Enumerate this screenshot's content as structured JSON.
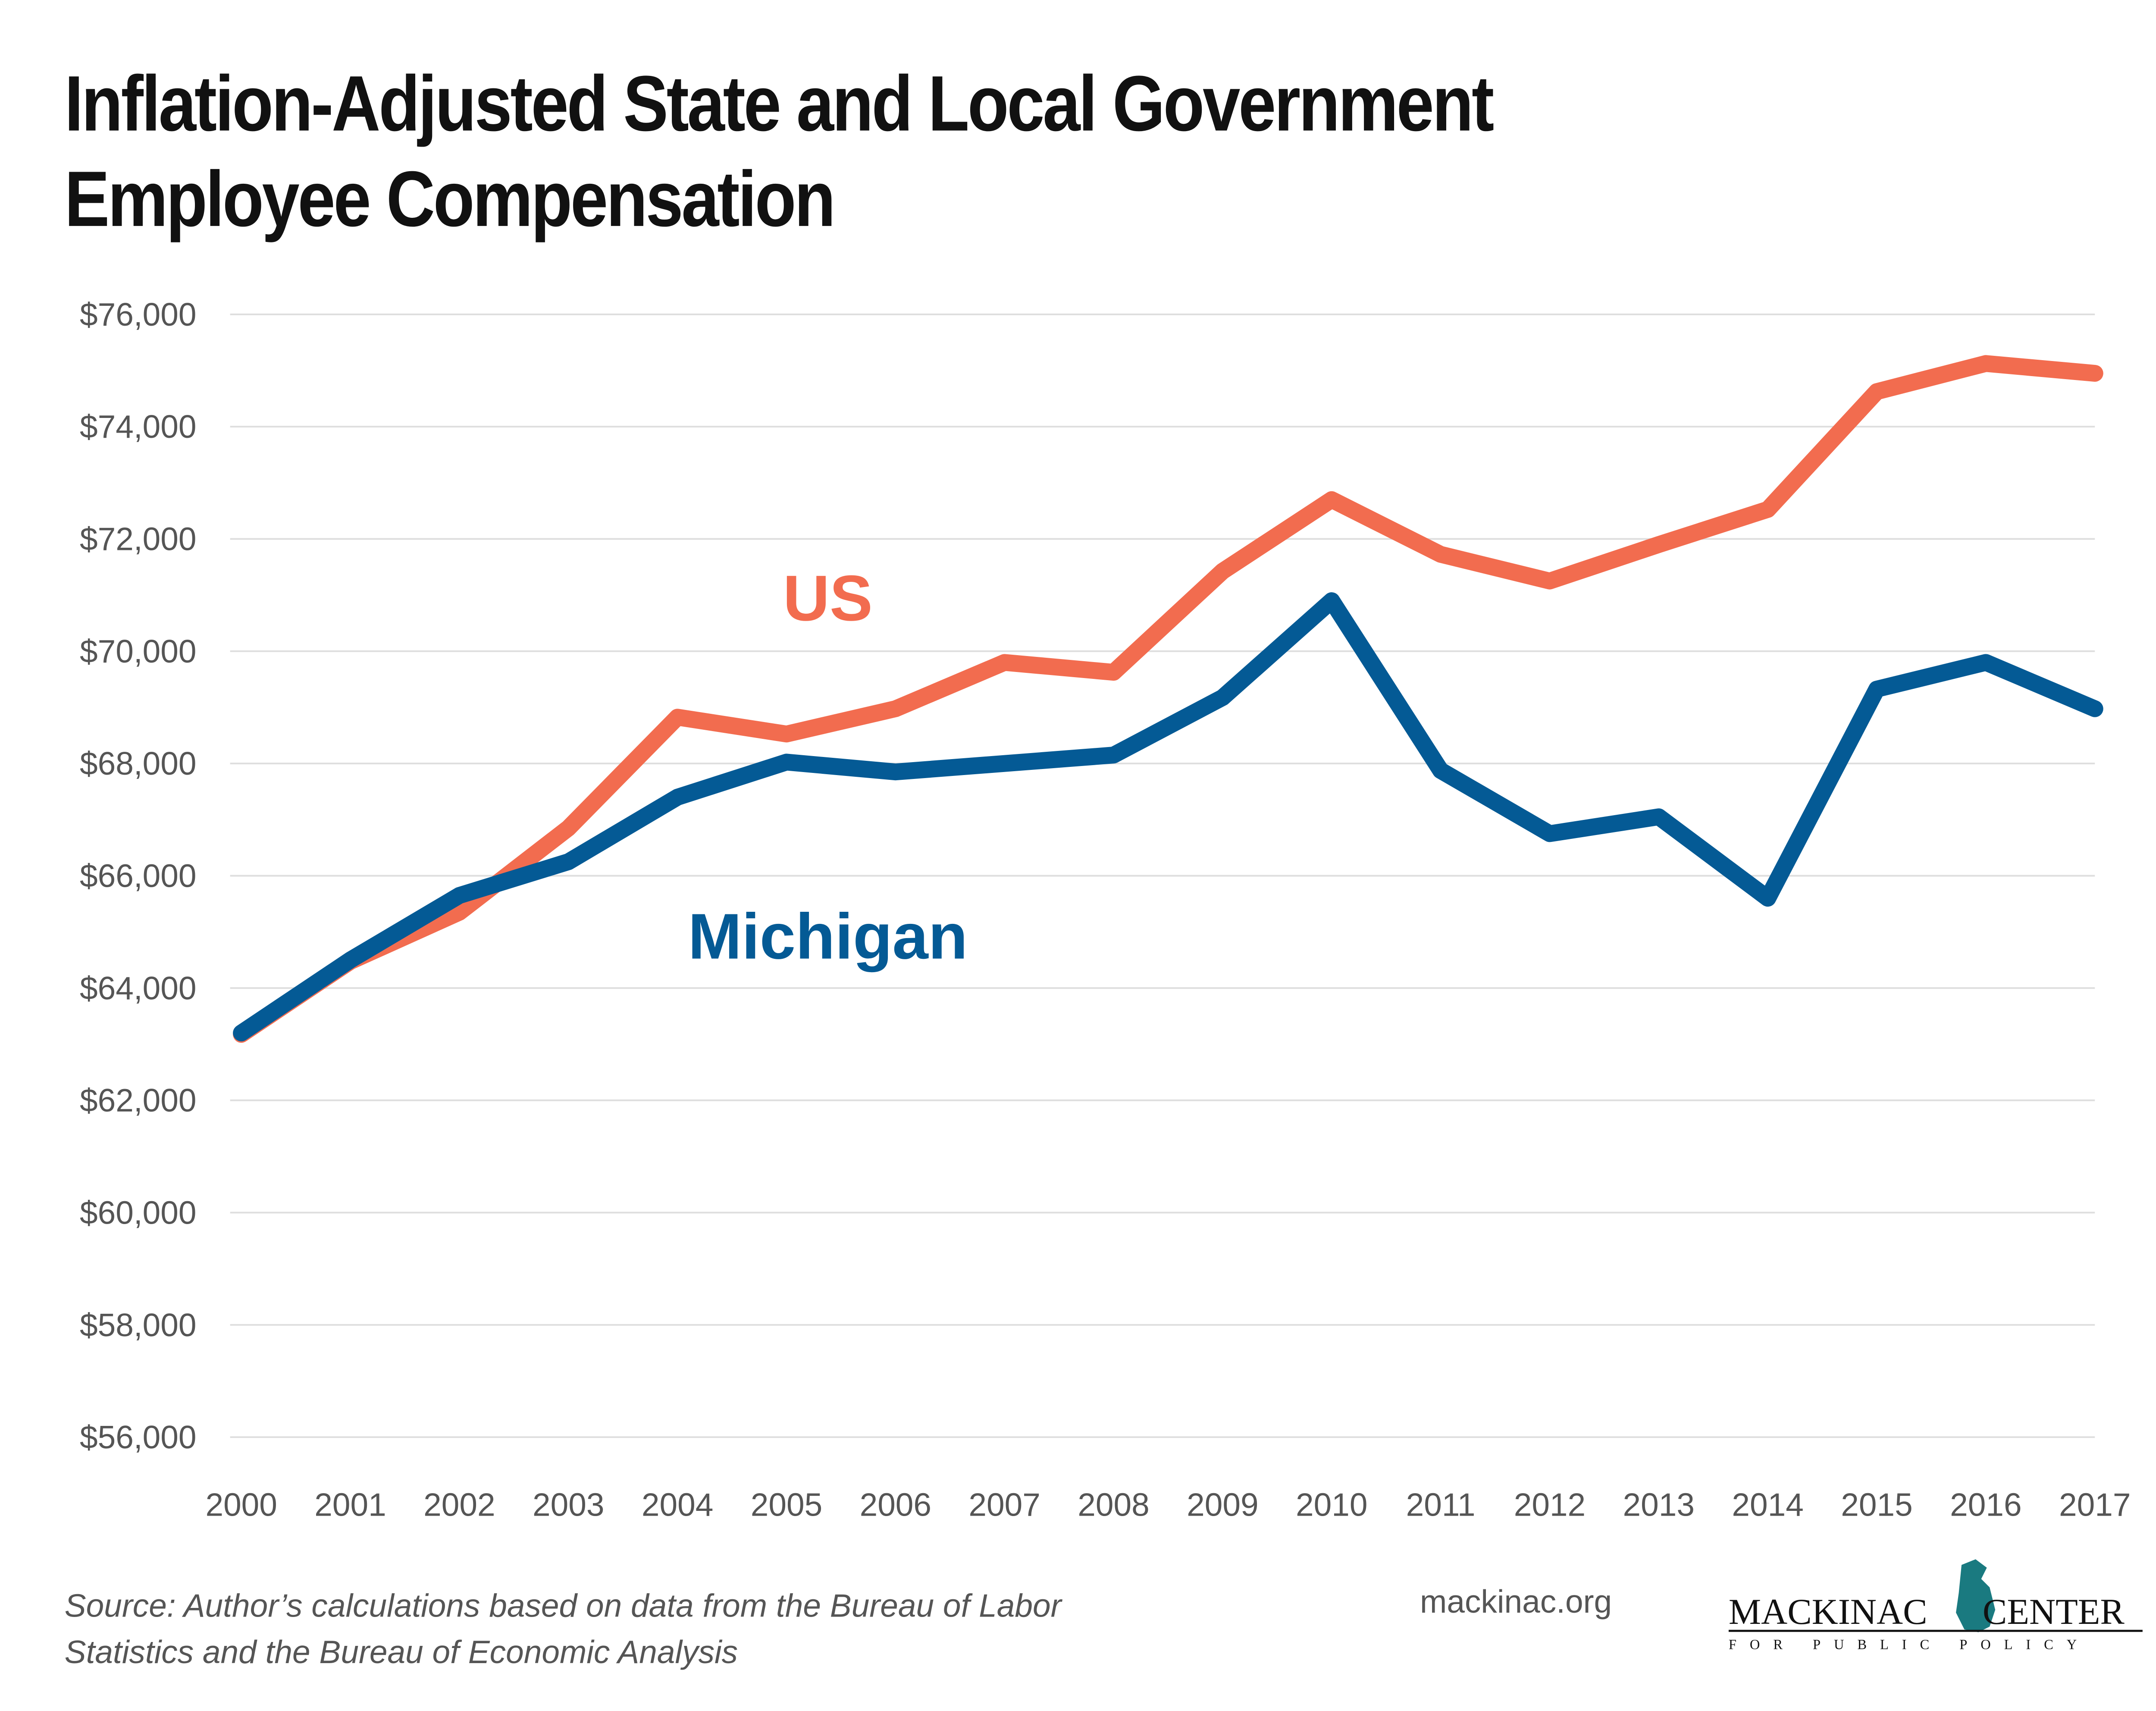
{
  "chart_data": {
    "type": "line",
    "title": "Inflation-Adjusted State and Local Government Employee Compensation",
    "x": [
      2000,
      2001,
      2002,
      2003,
      2004,
      2005,
      2006,
      2007,
      2008,
      2009,
      2010,
      2011,
      2012,
      2013,
      2014,
      2015,
      2016,
      2017
    ],
    "xlim": [
      2000,
      2017
    ],
    "xticks": [
      2000,
      2001,
      2002,
      2003,
      2004,
      2005,
      2006,
      2007,
      2008,
      2009,
      2010,
      2011,
      2012,
      2013,
      2014,
      2015,
      2016,
      2017
    ],
    "ylim": [
      56000,
      76000
    ],
    "yticks": [
      {
        "value": 56000,
        "label": "$56,000"
      },
      {
        "value": 58000,
        "label": "$58,000"
      },
      {
        "value": 60000,
        "label": "$60,000"
      },
      {
        "value": 62000,
        "label": "$62,000"
      },
      {
        "value": 64000,
        "label": "$64,000"
      },
      {
        "value": 66000,
        "label": "$66,000"
      },
      {
        "value": 68000,
        "label": "$68,000"
      },
      {
        "value": 70000,
        "label": "$70,000"
      },
      {
        "value": 72000,
        "label": "$72,000"
      },
      {
        "value": 74000,
        "label": "$74,000"
      },
      {
        "value": 76000,
        "label": "$76,000"
      }
    ],
    "grid": true,
    "series": [
      {
        "name": "US",
        "color": "#f26c4f",
        "values": [
          63175,
          64475,
          65350,
          66850,
          68825,
          68525,
          68975,
          69800,
          69625,
          71425,
          72700,
          71725,
          71250,
          71900,
          72525,
          74625,
          75125,
          74950
        ]
      },
      {
        "name": "Michigan",
        "color": "#045a95",
        "values": [
          63200,
          64500,
          65650,
          66250,
          67400,
          68025,
          67850,
          68000,
          68150,
          69175,
          70900,
          67875,
          66750,
          67050,
          65600,
          69325,
          69800,
          68975
        ]
      }
    ],
    "source": "Source: Author’s calculations based on data from the Bureau of Labor Statistics and the Bureau of Economic Analysis",
    "website": "mackinac.org",
    "logo": {
      "name_left": "MACKINAC",
      "name_right": "CENTER",
      "tagline": "FOR PUBLIC POLICY"
    }
  }
}
